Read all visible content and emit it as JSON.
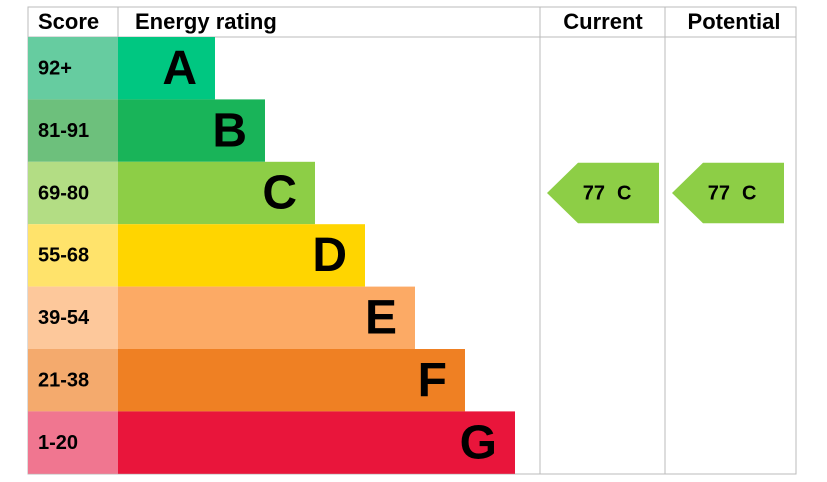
{
  "header": {
    "score": "Score",
    "rating": "Energy rating",
    "current": "Current",
    "potential": "Potential"
  },
  "bands": [
    {
      "score": "92+",
      "letter": "A"
    },
    {
      "score": "81-91",
      "letter": "B"
    },
    {
      "score": "69-80",
      "letter": "C"
    },
    {
      "score": "55-68",
      "letter": "D"
    },
    {
      "score": "39-54",
      "letter": "E"
    },
    {
      "score": "21-38",
      "letter": "F"
    },
    {
      "score": "1-20",
      "letter": "G"
    }
  ],
  "current": {
    "score": 77,
    "letter": "C"
  },
  "potential": {
    "score": 77,
    "letter": "C"
  }
}
